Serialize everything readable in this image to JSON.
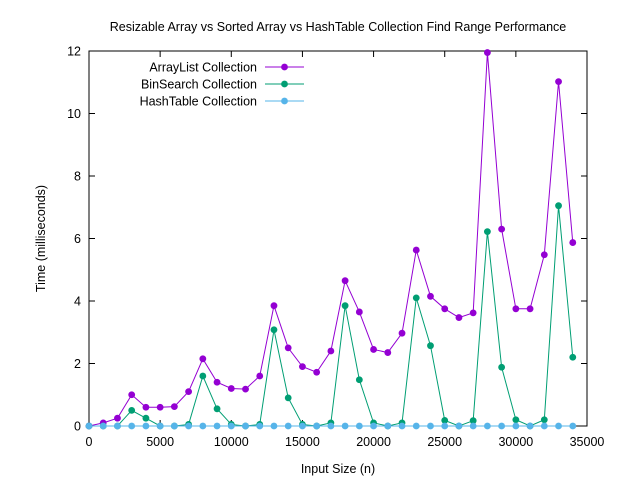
{
  "chart_data": {
    "type": "line",
    "title": "Resizable Array vs Sorted Array vs HashTable Collection Find Range Performance",
    "xlabel": "Input Size (n)",
    "ylabel": "Time (milliseconds)",
    "xlim": [
      0,
      35000
    ],
    "ylim": [
      0,
      12
    ],
    "xticks": [
      0,
      5000,
      10000,
      15000,
      20000,
      25000,
      30000,
      35000
    ],
    "yticks": [
      0,
      2,
      4,
      6,
      8,
      10,
      12
    ],
    "grid": false,
    "legend_position": "top-left",
    "x": [
      0,
      1000,
      2000,
      3000,
      4000,
      5000,
      6000,
      7000,
      8000,
      9000,
      10000,
      11000,
      12000,
      13000,
      14000,
      15000,
      16000,
      17000,
      18000,
      19000,
      20000,
      21000,
      22000,
      23000,
      24000,
      25000,
      26000,
      27000,
      28000,
      29000,
      30000,
      31000,
      32000,
      33000,
      34000
    ],
    "series": [
      {
        "name": "ArrayList Collection",
        "color": "#9400d3",
        "values": [
          0.0,
          0.1,
          0.25,
          1.0,
          0.6,
          0.6,
          0.62,
          1.1,
          2.15,
          1.4,
          1.2,
          1.18,
          1.6,
          3.85,
          2.5,
          1.9,
          1.72,
          2.4,
          4.65,
          3.65,
          2.45,
          2.35,
          2.97,
          5.63,
          4.15,
          3.75,
          3.47,
          3.62,
          11.95,
          6.3,
          3.75,
          3.75,
          5.48,
          11.02,
          5.87
        ]
      },
      {
        "name": "BinSearch Collection",
        "color": "#009e73",
        "values": [
          0.0,
          0.0,
          0.0,
          0.5,
          0.25,
          0.0,
          0.0,
          0.05,
          1.6,
          0.55,
          0.05,
          0.0,
          0.05,
          3.08,
          0.9,
          0.05,
          0.0,
          0.1,
          3.85,
          1.48,
          0.1,
          0.0,
          0.1,
          4.1,
          2.57,
          0.18,
          0.0,
          0.17,
          6.22,
          1.88,
          0.2,
          0.0,
          0.2,
          7.05,
          2.2
        ]
      },
      {
        "name": "HashTable Collection",
        "color": "#56b4e9",
        "values": [
          0,
          0,
          0,
          0,
          0,
          0,
          0,
          0,
          0,
          0,
          0,
          0,
          0,
          0,
          0,
          0,
          0,
          0,
          0,
          0,
          0,
          0,
          0,
          0,
          0,
          0,
          0,
          0,
          0,
          0,
          0,
          0,
          0,
          0,
          0
        ]
      }
    ]
  }
}
